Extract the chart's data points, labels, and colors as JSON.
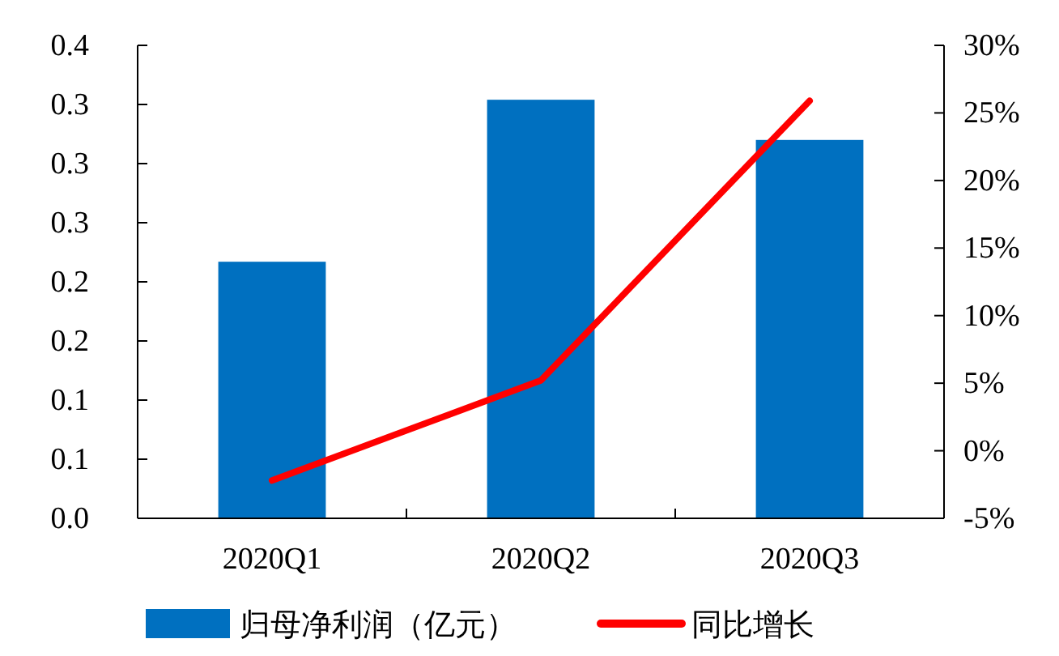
{
  "chart_data": {
    "type": "bar",
    "categories": [
      "2020Q1",
      "2020Q2",
      "2020Q3"
    ],
    "series": [
      {
        "name": "归母净利润（亿元）",
        "color": "#0070c0",
        "values": [
          0.217,
          0.354,
          0.32
        ]
      },
      {
        "name": "同比增长",
        "type": "line",
        "axis": "y2",
        "color": "#ff0000",
        "values": [
          -2.2,
          5.2,
          25.9
        ]
      }
    ],
    "ylim": [
      0,
      0.4
    ],
    "yticks": [
      {
        "value": 0,
        "label": "0.0"
      },
      {
        "value": 0.05,
        "label": "0.1"
      },
      {
        "value": 0.1,
        "label": "0.1"
      },
      {
        "value": 0.15,
        "label": "0.2"
      },
      {
        "value": 0.2,
        "label": "0.2"
      },
      {
        "value": 0.25,
        "label": "0.3"
      },
      {
        "value": 0.3,
        "label": "0.3"
      },
      {
        "value": 0.35,
        "label": "0.3"
      },
      {
        "value": 0.4,
        "label": "0.4"
      }
    ],
    "y2lim": [
      -5,
      30
    ],
    "y2ticks": [
      {
        "value": -5,
        "label": "-5%"
      },
      {
        "value": 0,
        "label": "0%"
      },
      {
        "value": 5,
        "label": "5%"
      },
      {
        "value": 10,
        "label": "10%"
      },
      {
        "value": 15,
        "label": "15%"
      },
      {
        "value": 20,
        "label": "20%"
      },
      {
        "value": 25,
        "label": "25%"
      },
      {
        "value": 30,
        "label": "30%"
      }
    ],
    "legend": "bottom",
    "grid": false,
    "marker": "none",
    "line_style": "solid"
  }
}
